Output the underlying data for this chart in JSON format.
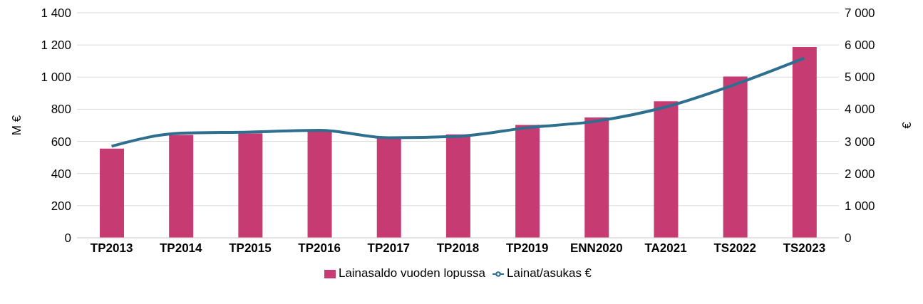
{
  "chart_data": {
    "type": "bar",
    "ylabel": "M €",
    "y2label": "€",
    "categories": [
      "TP2013",
      "TP2014",
      "TP2015",
      "TP2016",
      "TP2017",
      "TP2018",
      "TP2019",
      "ENN2020",
      "TA2021",
      "TS2022",
      "TS2023"
    ],
    "series": [
      {
        "name": "Lainasaldo vuoden lopussa",
        "color": "#c63b72",
        "values": [
          555,
          640,
          650,
          660,
          620,
          643,
          702,
          749,
          850,
          1003,
          1187
        ]
      },
      {
        "name": "Lainat/asukas €",
        "type": "line",
        "axis": "y2",
        "color": "#2e6e8e",
        "values": [
          2850,
          3255,
          3290,
          3345,
          3110,
          3155,
          3425,
          3630,
          4070,
          4770,
          5590
        ]
      }
    ],
    "ylim": [
      0,
      1400
    ],
    "yticks": [
      0,
      200,
      400,
      600,
      800,
      {
        "value": 1000,
        "label": "1 000"
      },
      {
        "value": 1200,
        "label": "1 200"
      },
      {
        "value": 1400,
        "label": "1 400"
      }
    ],
    "y2lim": [
      0,
      7000
    ],
    "y2ticks": [
      0,
      {
        "value": 1000,
        "label": "1 000"
      },
      {
        "value": 2000,
        "label": "2 000"
      },
      {
        "value": 3000,
        "label": "3 000"
      },
      {
        "value": 4000,
        "label": "4 000"
      },
      {
        "value": 5000,
        "label": "5 000"
      },
      {
        "value": 6000,
        "label": "6 000"
      },
      {
        "value": 7000,
        "label": "7 000"
      }
    ],
    "grid": "y",
    "legend": "bottom",
    "marker": "none"
  }
}
